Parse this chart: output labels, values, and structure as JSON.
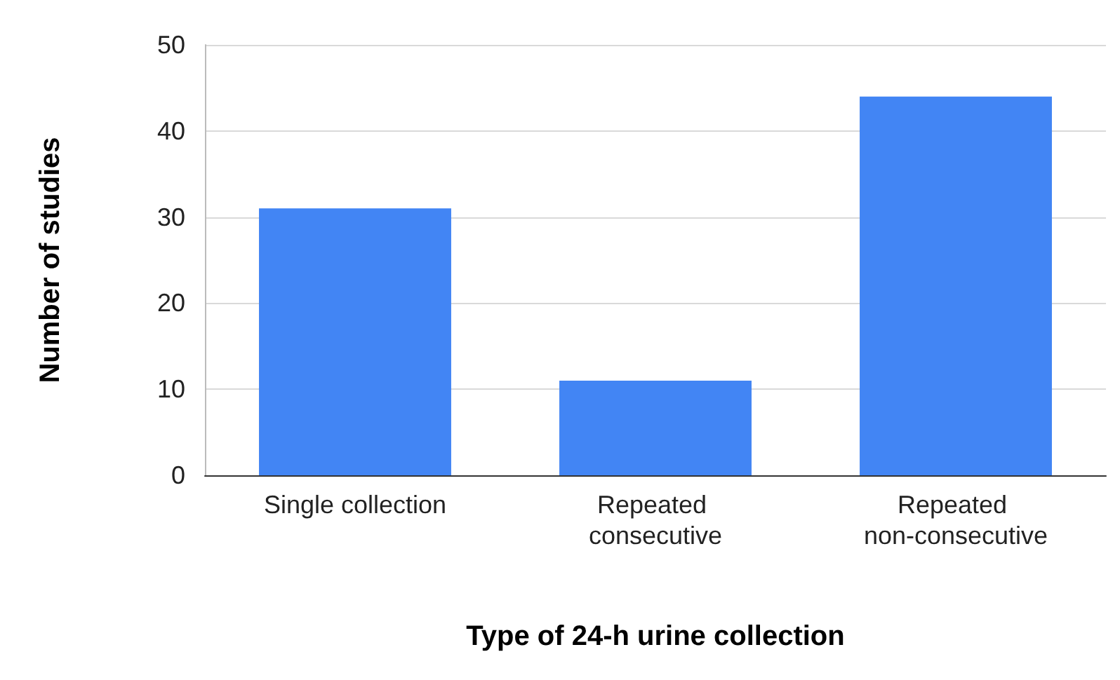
{
  "chart_data": {
    "type": "bar",
    "xlabel": "Type of 24-h urine collection",
    "ylabel": "Number of studies",
    "categories": [
      "Single collection",
      "Repeated consecutive",
      "Repeated non-consecutive"
    ],
    "values": [
      31,
      11,
      44
    ],
    "color": "#4285f4",
    "ylim": [
      0,
      50
    ],
    "yticks": [
      0,
      10,
      20,
      30,
      40,
      50
    ],
    "grid": "y"
  }
}
